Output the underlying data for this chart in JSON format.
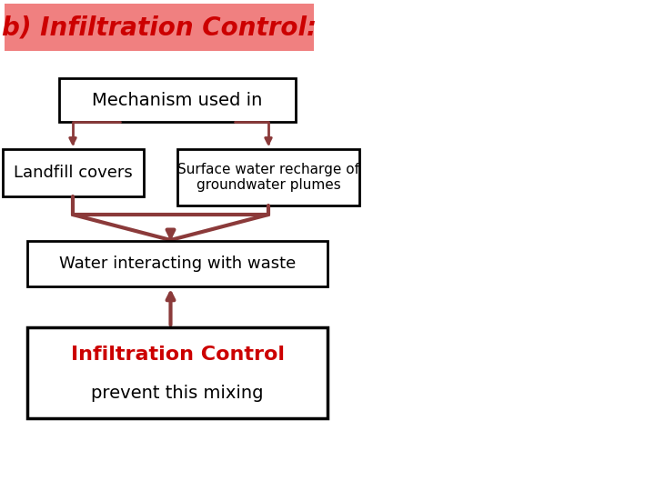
{
  "title": "b) Infiltration Control:",
  "title_bg": "#f08080",
  "title_color": "#cc0000",
  "title_fontsize": 20,
  "box_mechanism": "Mechanism used in",
  "box_landfill": "Landfill covers",
  "box_surface": "Surface water recharge of\ngroundwater plumes",
  "box_water": "Water interacting with waste",
  "box_infiltration_line1": "Infiltration Control",
  "box_infiltration_line2": "prevent this mixing",
  "arrow_color": "#8b3a3a",
  "box_border_color": "black",
  "bg_color": "white",
  "text_color": "black",
  "red_text_color": "#cc0000",
  "lw": 2.0
}
